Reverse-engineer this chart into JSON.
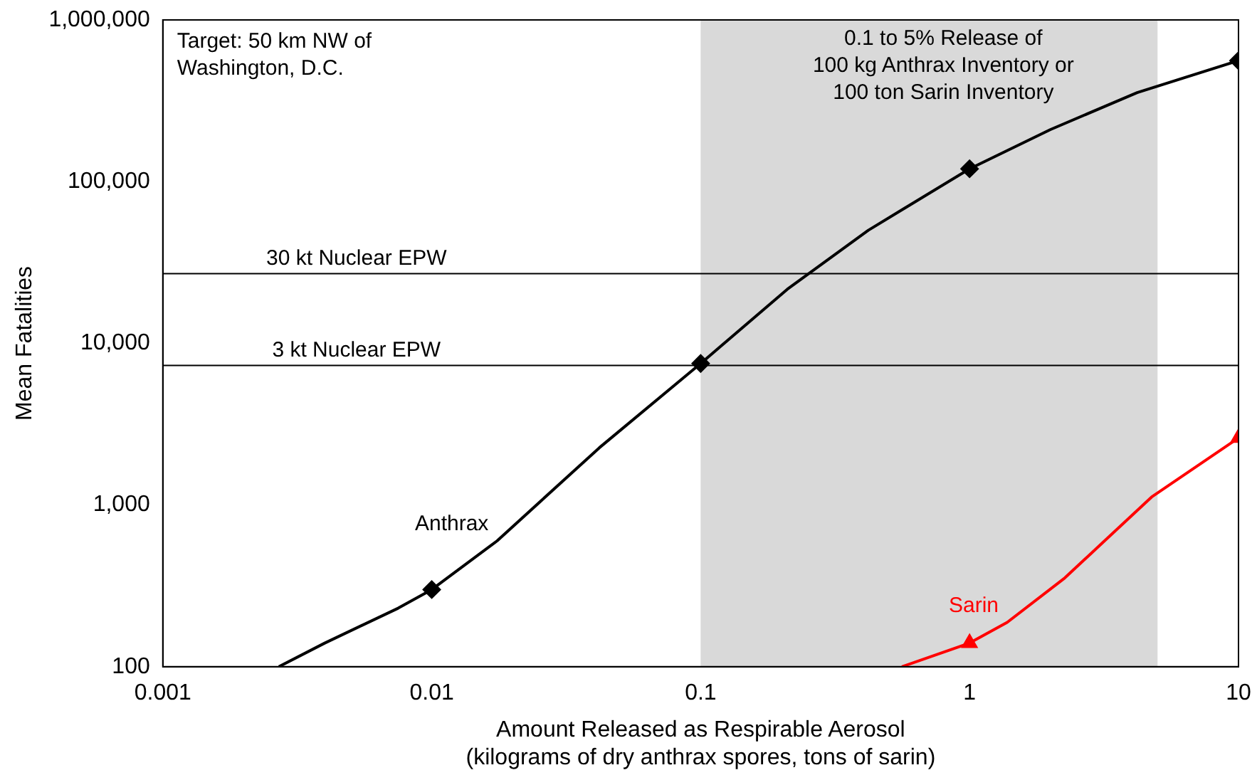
{
  "chart_data": {
    "type": "line",
    "xlabel": "Amount Released as Respirable Aerosol\n(kilograms of dry anthrax spores, tons of sarin)",
    "ylabel": "Mean Fatalities",
    "log": "xy",
    "grid": false,
    "legend": false,
    "xlim": [
      0.001,
      10
    ],
    "xticks": [
      0.001,
      0.01,
      0.1,
      1,
      10
    ],
    "ylim": [
      100,
      1000000
    ],
    "yticks": [
      100,
      {
        "value": 1000,
        "label": "1,000"
      },
      {
        "value": 10000,
        "label": "10,000"
      },
      {
        "value": 100000,
        "label": "100,000"
      },
      {
        "value": 1000000,
        "label": "1,000,000"
      }
    ],
    "series": [
      {
        "name": "Anthrax",
        "marker": "none",
        "color": "#000000",
        "x": [
          0.0027,
          0.004,
          0.0075,
          0.01,
          0.0175,
          0.042,
          0.1,
          0.21,
          0.42,
          1,
          2,
          4.2,
          10
        ],
        "values": [
          100,
          140,
          230,
          300,
          600,
          2260,
          7500,
          21600,
          50000,
          120000,
          210000,
          355000,
          560000
        ]
      },
      {
        "name": "Sarin",
        "marker": "none",
        "color": "#ff0000",
        "x": [
          0.56,
          1,
          1.38,
          2.26,
          4.75,
          10
        ],
        "values": [
          100,
          140,
          188,
          354,
          1120,
          2600
        ]
      },
      {
        "type": "scatter",
        "marker": "diamond",
        "color": "#000000",
        "x": [
          0.01,
          0.1,
          1,
          10
        ],
        "values": [
          300,
          7500,
          120000,
          560000
        ]
      },
      {
        "type": "scatter",
        "marker": "triangle",
        "color": "#ff0000",
        "x": [
          1,
          10
        ],
        "values": [
          140,
          2600
        ]
      }
    ],
    "ref_lines": [
      {
        "axis": "y",
        "value": 27000,
        "label": "30 kt Nuclear EPW",
        "color": "#000000"
      },
      {
        "axis": "y",
        "value": 7300,
        "label": "3 kt Nuclear EPW",
        "color": "#000000"
      }
    ],
    "bands": [
      {
        "axis": "x",
        "from": 0.1,
        "to": 5,
        "label": "0.1 to 5% Release of\n100 kg Anthrax Inventory or\n100 ton Sarin Inventory",
        "color": "#d9d9d9"
      }
    ],
    "annotations": [
      "Target: 50 km NW of\nWashington, D.C."
    ]
  }
}
